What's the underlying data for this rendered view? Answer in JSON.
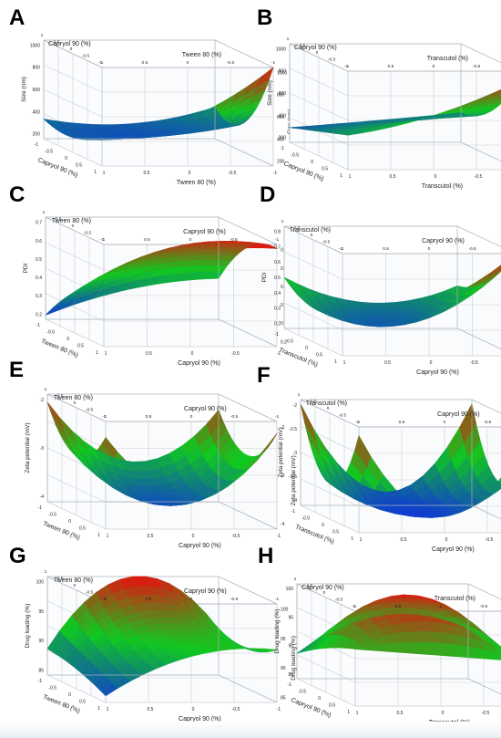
{
  "palette": {
    "low": "#1030e0",
    "mid": "#10c820",
    "high": "#e81010"
  },
  "panels": [
    {
      "letter": "A",
      "ylabel": "Size (nm)",
      "xlabel": "Capryol 90 (%)",
      "zlabel": "Tween 80 (%)",
      "xticks": [
        "1",
        "0.5",
        "0",
        "-0.5",
        "-1"
      ],
      "zticks": [
        "-1",
        "-0.5",
        "0",
        "0.5",
        "1"
      ],
      "yticks": [
        "200",
        "400",
        "600",
        "800",
        "1000"
      ]
    },
    {
      "letter": "B",
      "ylabel": "Size (nm)",
      "xlabel": "Capryol 90 (%)",
      "zlabel": "Transcutol (%)",
      "xticks": [
        "1",
        "0.5",
        "0",
        "-0.5",
        "-1"
      ],
      "zticks": [
        "-1",
        "-0.5",
        "0",
        "0.5",
        "1"
      ],
      "yticks": [
        "200",
        "400",
        "600",
        "800",
        "1000"
      ]
    },
    {
      "letter": "C",
      "ylabel": "PDI",
      "xlabel": "Tween 80 (%)",
      "zlabel": "Capryol 90 (%)",
      "xticks": [
        "1",
        "0.5",
        "0",
        "-0.5",
        "-1"
      ],
      "zticks": [
        "-1",
        "-0.5",
        "0",
        "0.5",
        "1"
      ],
      "yticks": [
        "0.2",
        "0.3",
        "0.4",
        "0.5",
        "0.6",
        "0.7"
      ]
    },
    {
      "letter": "D",
      "ylabel": "PDI",
      "xlabel": "Transcutol (%)",
      "zlabel": "Capryol 90 (%)",
      "xticks": [
        "1",
        "0.5",
        "0",
        "-0.5",
        "-1"
      ],
      "zticks": [
        "-1",
        "-0.5",
        "0",
        "0.5",
        "1"
      ],
      "yticks": [
        "0.2",
        "0.3",
        "0.4",
        "0.5",
        "0.6",
        "0.7",
        "0.8"
      ]
    },
    {
      "letter": "E",
      "ylabel": "Zeta potential (mV)",
      "xlabel": "Tween 80 (%)",
      "zlabel": "Capryol 90 (%)",
      "xticks": [
        "1",
        "0.5",
        "0",
        "-0.5",
        "-1"
      ],
      "zticks": [
        "-1",
        "-0.5",
        "0",
        "0.5",
        "1"
      ],
      "yticks": [
        "-4",
        "-3",
        "-2"
      ]
    },
    {
      "letter": "F",
      "ylabel": "Zeta potential (mV)",
      "xlabel": "Transcutol (%)",
      "zlabel": "Capryol 90 (%)",
      "xticks": [
        "1",
        "0.5",
        "0",
        "-0.5",
        "-1"
      ],
      "zticks": [
        "-1",
        "-0.5",
        "0",
        "0.5",
        "1"
      ],
      "yticks": [
        "-4",
        "-3.5",
        "-3",
        "-2.5",
        "-2"
      ]
    },
    {
      "letter": "G",
      "ylabel": "Drug loading (%)",
      "xlabel": "Tween 80 (%)",
      "zlabel": "Capryol 90 (%)",
      "xticks": [
        "1",
        "0.5",
        "0",
        "-0.5",
        "-1"
      ],
      "zticks": [
        "-1",
        "-0.5",
        "0",
        "0.5",
        "1"
      ],
      "yticks": [
        "85",
        "90",
        "95",
        "100"
      ]
    },
    {
      "letter": "H",
      "ylabel": "Drug loading (%)",
      "xlabel": "Capryol 90 (%)",
      "zlabel": "Transcutol (%)",
      "xticks": [
        "1",
        "0.5",
        "0",
        "-0.5",
        "-1"
      ],
      "zticks": [
        "-1",
        "-0.5",
        "0",
        "0.5",
        "1"
      ],
      "yticks": [
        "85",
        "90",
        "95",
        "100"
      ]
    }
  ],
  "chart_data": [
    {
      "type": "surface",
      "panel": "A",
      "x_name": "Capryol 90 (%)",
      "y_name": "Tween 80 (%)",
      "z_name": "Size (nm)",
      "x": [
        -1,
        0,
        1
      ],
      "y": [
        -1,
        0,
        1
      ],
      "zlim": [
        0,
        1000
      ],
      "z": [
        [
          200,
          150,
          320
        ],
        [
          150,
          160,
          300
        ],
        [
          300,
          480,
          1000
        ]
      ]
    },
    {
      "type": "surface",
      "panel": "B",
      "x_name": "Capryol 90 (%)",
      "y_name": "Transcutol (%)",
      "z_name": "Size (nm)",
      "x": [
        -1,
        0,
        1
      ],
      "y": [
        -1,
        0,
        1
      ],
      "zlim": [
        0,
        1000
      ],
      "z": [
        [
          150,
          220,
          300
        ],
        [
          250,
          350,
          450
        ],
        [
          350,
          550,
          900
        ]
      ]
    },
    {
      "type": "surface",
      "panel": "C",
      "x_name": "Tween 80 (%)",
      "y_name": "Capryol 90 (%)",
      "z_name": "PDI",
      "x": [
        -1,
        0,
        1
      ],
      "y": [
        -1,
        0,
        1
      ],
      "zlim": [
        0.2,
        0.7
      ],
      "z": [
        [
          0.22,
          0.35,
          0.4
        ],
        [
          0.4,
          0.6,
          0.62
        ],
        [
          0.5,
          0.65,
          0.68
        ]
      ]
    },
    {
      "type": "surface",
      "panel": "D",
      "x_name": "Transcutol (%)",
      "y_name": "Capryol 90 (%)",
      "z_name": "PDI",
      "x": [
        -1,
        0,
        1
      ],
      "y": [
        -1,
        0,
        1
      ],
      "zlim": [
        0.2,
        0.8
      ],
      "z": [
        [
          0.5,
          0.35,
          0.45
        ],
        [
          0.4,
          0.3,
          0.55
        ],
        [
          0.45,
          0.5,
          0.8
        ]
      ]
    },
    {
      "type": "surface",
      "panel": "E",
      "x_name": "Tween 80 (%)",
      "y_name": "Capryol 90 (%)",
      "z_name": "Zeta potential (mV)",
      "x": [
        -1,
        0,
        1
      ],
      "y": [
        -1,
        0,
        1
      ],
      "zlim": [
        -4.5,
        -1.8
      ],
      "z": [
        [
          -2.0,
          -3.5,
          -2.2
        ],
        [
          -3.0,
          -4.2,
          -3.0
        ],
        [
          -2.2,
          -3.6,
          -2.1
        ]
      ]
    },
    {
      "type": "surface",
      "panel": "F",
      "x_name": "Transcutol (%)",
      "y_name": "Capryol 90 (%)",
      "z_name": "Zeta potential (mV)",
      "x": [
        -1,
        0,
        1
      ],
      "y": [
        -1,
        0,
        1
      ],
      "zlim": [
        -4.3,
        -1.9
      ],
      "z": [
        [
          -2.0,
          -4.0,
          -2.0
        ],
        [
          -3.5,
          -4.2,
          -3.5
        ],
        [
          -2.1,
          -3.9,
          -2.0
        ]
      ]
    },
    {
      "type": "surface",
      "panel": "G",
      "x_name": "Tween 80 (%)",
      "y_name": "Capryol 90 (%)",
      "z_name": "Drug loading (%)",
      "x": [
        -1,
        0,
        1
      ],
      "y": [
        -1,
        0,
        1
      ],
      "zlim": [
        85,
        100
      ],
      "z": [
        [
          89,
          100,
          92
        ],
        [
          88,
          94,
          91
        ],
        [
          86,
          92,
          93
        ]
      ]
    },
    {
      "type": "surface",
      "panel": "H",
      "x_name": "Capryol 90 (%)",
      "y_name": "Transcutol (%)",
      "z_name": "Drug loading (%)",
      "x": [
        -1,
        0,
        1
      ],
      "y": [
        -1,
        0,
        1
      ],
      "zlim": [
        85,
        100
      ],
      "z": [
        [
          89,
          95,
          93
        ],
        [
          92,
          100,
          92
        ],
        [
          94,
          93,
          92
        ]
      ]
    }
  ]
}
